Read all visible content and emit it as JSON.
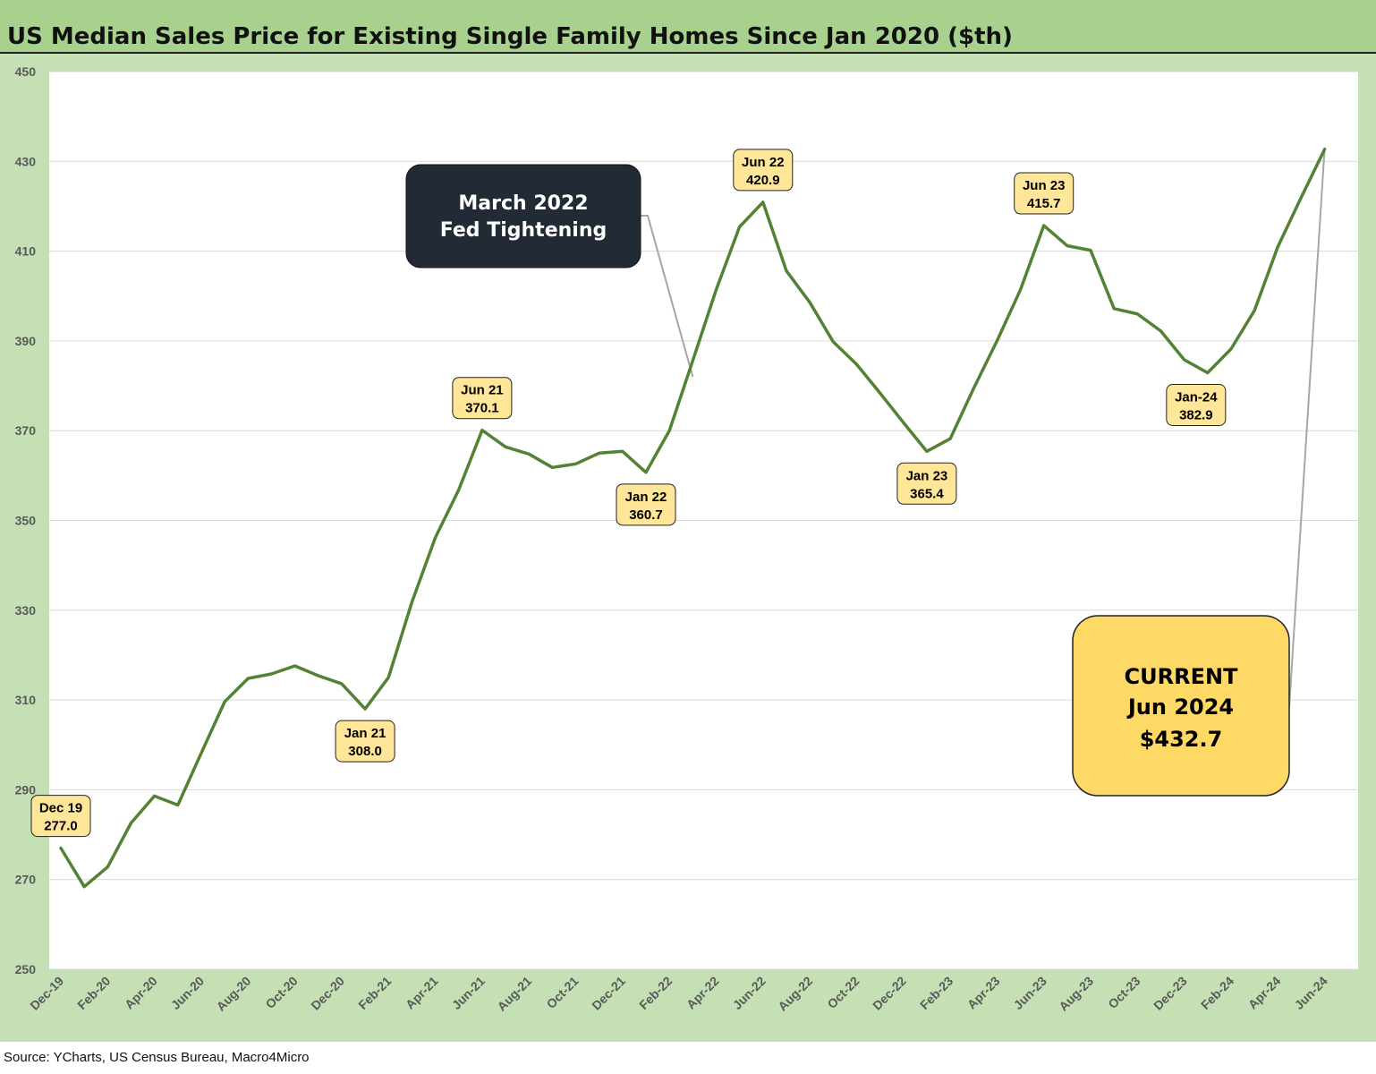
{
  "title": "US Median Sales Price for Existing Single Family Homes Since Jan 2020 ($th)",
  "source": "Source: YCharts, US Census Bureau, Macro4Micro",
  "colors": {
    "line": "#548235",
    "plot_bg": "#ffffff",
    "frame_bg": "#c5e0b4",
    "title_bg": "#a9d18e",
    "label_box": "#ffe699",
    "callout_dark": "#222a35",
    "callout_gold": "#ffd966",
    "leader": "#a6a6a6"
  },
  "chart_data": {
    "type": "line",
    "title": "US Median Sales Price for Existing Single Family Homes Since Jan 2020 ($th)",
    "xlabel": "",
    "ylabel": "",
    "ylim": [
      250,
      450
    ],
    "yticks": [
      250,
      270,
      290,
      310,
      330,
      350,
      370,
      390,
      410,
      430,
      450
    ],
    "grid": true,
    "xtick_labels": [
      "Dec-19",
      "Feb-20",
      "Apr-20",
      "Jun-20",
      "Aug-20",
      "Oct-20",
      "Dec-20",
      "Feb-21",
      "Apr-21",
      "Jun-21",
      "Aug-21",
      "Oct-21",
      "Dec-21",
      "Feb-22",
      "Apr-22",
      "Jun-22",
      "Aug-22",
      "Oct-22",
      "Dec-22",
      "Feb-23",
      "Apr-23",
      "Jun-23",
      "Aug-23",
      "Oct-23",
      "Dec-23",
      "Feb-24",
      "Apr-24",
      "Jun-24"
    ],
    "series": [
      {
        "name": "",
        "x": [
          "Dec-19",
          "Jan-20",
          "Feb-20",
          "Mar-20",
          "Apr-20",
          "May-20",
          "Jun-20",
          "Jul-20",
          "Aug-20",
          "Sep-20",
          "Oct-20",
          "Nov-20",
          "Dec-20",
          "Jan-21",
          "Feb-21",
          "Mar-21",
          "Apr-21",
          "May-21",
          "Jun-21",
          "Jul-21",
          "Aug-21",
          "Sep-21",
          "Oct-21",
          "Nov-21",
          "Dec-21",
          "Jan-22",
          "Feb-22",
          "Mar-22",
          "Apr-22",
          "May-22",
          "Jun-22",
          "Jul-22",
          "Aug-22",
          "Sep-22",
          "Oct-22",
          "Nov-22",
          "Dec-22",
          "Jan-23",
          "Feb-23",
          "Mar-23",
          "Apr-23",
          "May-23",
          "Jun-23",
          "Jul-23",
          "Aug-23",
          "Sep-23",
          "Oct-23",
          "Nov-23",
          "Dec-23",
          "Jan-24",
          "Feb-24",
          "Mar-24",
          "Apr-24",
          "May-24",
          "Jun-24"
        ],
        "values": [
          277.0,
          268.4,
          272.8,
          282.6,
          288.6,
          286.6,
          298.2,
          309.6,
          314.8,
          315.8,
          317.6,
          315.4,
          313.6,
          308.0,
          315.0,
          331.8,
          346.2,
          356.8,
          370.1,
          366.4,
          364.8,
          361.8,
          362.6,
          365.0,
          365.4,
          360.7,
          370.0,
          385.6,
          401.4,
          415.4,
          420.9,
          405.6,
          398.6,
          389.8,
          384.8,
          378.4,
          371.8,
          365.4,
          368.2,
          379.4,
          390.0,
          401.4,
          415.7,
          411.2,
          410.2,
          397.2,
          396.0,
          392.2,
          385.8,
          382.9,
          388.2,
          396.8,
          411.0,
          422.0,
          432.7
        ]
      }
    ],
    "annotations": [
      {
        "x": "Dec-19",
        "line1": "Dec 19",
        "line2": "277.0"
      },
      {
        "x": "Jan-21",
        "line1": "Jan 21",
        "line2": "308.0"
      },
      {
        "x": "Jun-21",
        "line1": "Jun 21",
        "line2": "370.1"
      },
      {
        "x": "Jan-22",
        "line1": "Jan 22",
        "line2": "360.7"
      },
      {
        "x": "Jun-22",
        "line1": "Jun 22",
        "line2": "420.9"
      },
      {
        "x": "Jan-23",
        "line1": "Jan 23",
        "line2": "365.4"
      },
      {
        "x": "Jun-23",
        "line1": "Jun 23",
        "line2": "415.7"
      },
      {
        "x": "Jan-24",
        "line1": "Jan-24",
        "line2": "382.9"
      }
    ],
    "callouts": [
      {
        "id": "fed",
        "lines": [
          "March 2022",
          "Fed Tightening"
        ],
        "target_x": "Mar-22"
      },
      {
        "id": "current",
        "lines": [
          "CURRENT",
          "Jun 2024",
          "$432.7"
        ],
        "target_x": "Jun-24"
      }
    ]
  }
}
